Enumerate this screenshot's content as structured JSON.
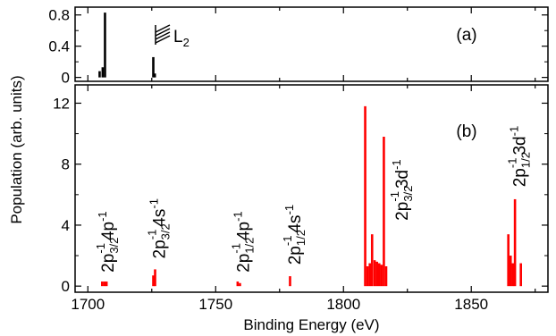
{
  "chart_data": {
    "type": "bar",
    "xlabel": "Binding Energy (eV)",
    "ylabel": "Population (arb. units)",
    "xlim": [
      1695,
      1880
    ],
    "xticks": [
      1700,
      1750,
      1800,
      1850
    ],
    "panels": [
      {
        "id": "a",
        "label": "(a)",
        "ylim": [
          -0.05,
          0.9
        ],
        "yticks": [
          "0",
          "0.4",
          "0.8"
        ],
        "ytick_values": [
          0,
          0.4,
          0.8
        ],
        "color": "#000000",
        "bars": [
          {
            "x": 1704.6,
            "y": 0.08
          },
          {
            "x": 1705.8,
            "y": 0.13
          },
          {
            "x": 1706.7,
            "y": 0.83
          },
          {
            "x": 1725.6,
            "y": 0.26
          },
          {
            "x": 1726.2,
            "y": 0.05
          }
        ],
        "legend_label": {
          "main": "L",
          "sub": "2"
        }
      },
      {
        "id": "b",
        "label": "(b)",
        "ylim": [
          -0.4,
          13.2
        ],
        "yticks": [
          "0",
          "4",
          "8",
          "12"
        ],
        "ytick_values": [
          0,
          4,
          8,
          12
        ],
        "color": "#ff0000",
        "bars": [
          {
            "x": 1705.6,
            "y": 0.3
          },
          {
            "x": 1706.5,
            "y": 0.3
          },
          {
            "x": 1707.3,
            "y": 0.3
          },
          {
            "x": 1725.6,
            "y": 0.7
          },
          {
            "x": 1726.3,
            "y": 1.1
          },
          {
            "x": 1758.6,
            "y": 0.3
          },
          {
            "x": 1759.5,
            "y": 0.2
          },
          {
            "x": 1779.1,
            "y": 0.65
          },
          {
            "x": 1808.5,
            "y": 11.8
          },
          {
            "x": 1809.4,
            "y": 1.3
          },
          {
            "x": 1810.3,
            "y": 1.5
          },
          {
            "x": 1811.2,
            "y": 3.4
          },
          {
            "x": 1812.2,
            "y": 1.7
          },
          {
            "x": 1813.1,
            "y": 1.6
          },
          {
            "x": 1814.0,
            "y": 1.5
          },
          {
            "x": 1814.9,
            "y": 1.4
          },
          {
            "x": 1815.8,
            "y": 9.8
          },
          {
            "x": 1816.7,
            "y": 1.3
          },
          {
            "x": 1864.5,
            "y": 3.4
          },
          {
            "x": 1865.4,
            "y": 2.0
          },
          {
            "x": 1866.3,
            "y": 1.5
          },
          {
            "x": 1867.1,
            "y": 5.7
          },
          {
            "x": 1869.4,
            "y": 1.5
          }
        ],
        "annotations": [
          {
            "text": "2p",
            "sub": "3/2",
            "sup": "-1",
            "tail": "4p",
            "tail_sup": "-1",
            "x": 1708,
            "y": 0.9
          },
          {
            "text": "2p",
            "sub": "3/2",
            "sup": "-1",
            "tail": "4s",
            "tail_sup": "-1",
            "x": 1728,
            "y": 1.8
          },
          {
            "text": "2p",
            "sub": "1/2",
            "sup": "-1",
            "tail": "4p",
            "tail_sup": "-1",
            "x": 1761,
            "y": 0.9
          },
          {
            "text": "2p",
            "sub": "1/2",
            "sup": "-1",
            "tail": "4s",
            "tail_sup": "-1",
            "x": 1781,
            "y": 1.4
          },
          {
            "text": "2p",
            "sub": "3/2",
            "sup": "-1",
            "tail": "3d",
            "tail_sup": "-1",
            "x": 1823,
            "y": 4.3
          },
          {
            "text": "2p",
            "sub": "1/2",
            "sup": "-1",
            "tail": "3d",
            "tail_sup": "-1",
            "x": 1869,
            "y": 6.5
          }
        ]
      }
    ]
  }
}
